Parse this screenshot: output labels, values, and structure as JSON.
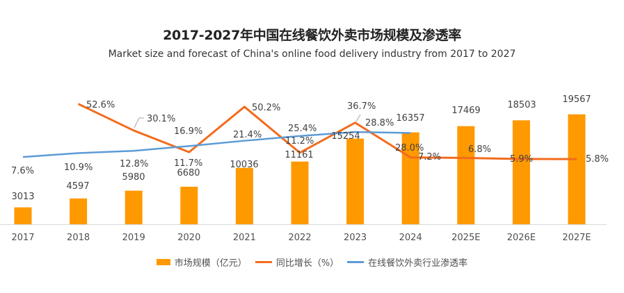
{
  "chart_data": {
    "type": "bar",
    "title": "2017-2027年中国在线餐饮外卖市场规模及渗透率",
    "subtitle": "Market size and forecast of China's online food delivery industry from 2017 to 2027",
    "categories": [
      "2017",
      "2018",
      "2019",
      "2020",
      "2021",
      "2022",
      "2023",
      "2024",
      "2025E",
      "2026E",
      "2027E"
    ],
    "series": [
      {
        "name": "市场规模（亿元）",
        "type": "bar",
        "color": "#FF9900",
        "values": [
          3013,
          4597,
          5980,
          6680,
          10036,
          11161,
          15254,
          16357,
          17469,
          18503,
          19567
        ],
        "labels": [
          "3013",
          "4597",
          "5980",
          "6680",
          "10036",
          "11161",
          "15254",
          "16357",
          "17469",
          "18503",
          "19567"
        ]
      },
      {
        "name": "同比增长（%）",
        "type": "line",
        "color": "#F26B1D",
        "values": [
          null,
          52.6,
          30.1,
          11.7,
          50.2,
          11.2,
          36.7,
          7.2,
          6.8,
          5.9,
          5.8
        ],
        "labels": [
          "",
          "52.6%",
          "30.1%",
          "11.7%",
          "50.2%",
          "11.2%",
          "36.7%",
          "7.2%",
          "6.8%",
          "5.9%",
          "5.8%"
        ]
      },
      {
        "name": "在线餐饮外卖行业渗透率",
        "type": "line",
        "color": "#5B9BD5",
        "values": [
          7.6,
          10.9,
          12.8,
          16.9,
          21.4,
          25.4,
          28.8,
          28.0,
          null,
          null,
          null
        ],
        "labels": [
          "7.6%",
          "10.9%",
          "12.8%",
          "16.9%",
          "21.4%",
          "25.4%",
          "28.8%",
          "28.0%",
          "",
          "",
          ""
        ]
      }
    ],
    "xlabel": "",
    "ylabel": "",
    "ylim": [
      0,
      22000
    ],
    "secondary_ylim": [
      0,
      60
    ],
    "grid": false,
    "legend": "bottom"
  }
}
